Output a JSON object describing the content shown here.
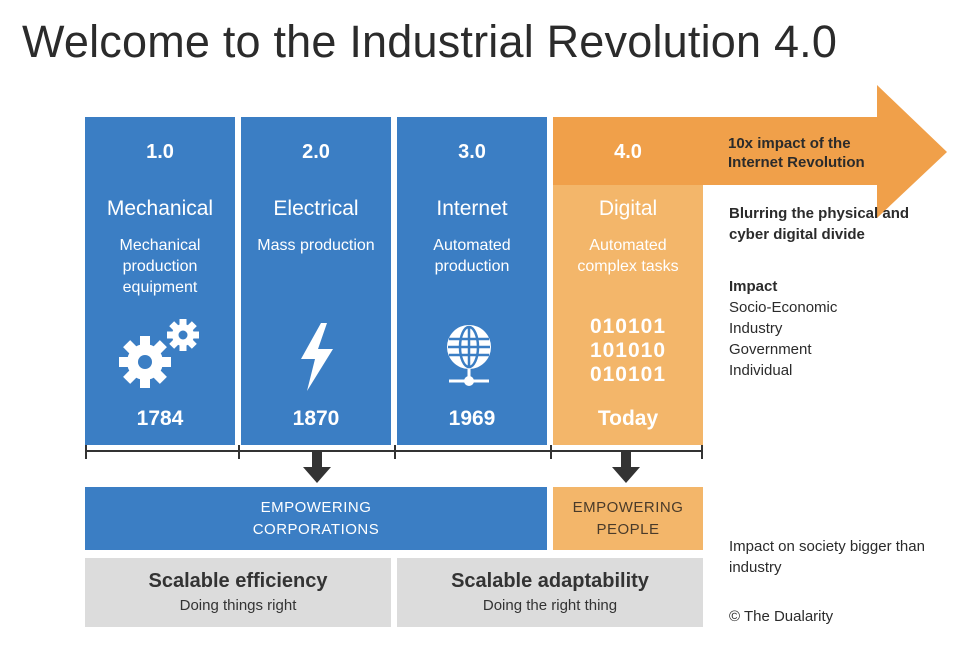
{
  "title": "Welcome to the Industrial Revolution 4.0",
  "colors": {
    "blue": "#3b7ec4",
    "orange": "#f3b66a",
    "arrow": "#f0a04a",
    "grey": "#dcdcdc"
  },
  "stages": [
    {
      "num": "1.0",
      "name": "Mechanical",
      "desc": "Mechanical production equipment",
      "icon": "gears-icon",
      "year": "1784"
    },
    {
      "num": "2.0",
      "name": "Electrical",
      "desc": "Mass production",
      "icon": "lightning-icon",
      "year": "1870"
    },
    {
      "num": "3.0",
      "name": "Internet",
      "desc": "Automated production",
      "icon": "globe-network-icon",
      "year": "1969"
    },
    {
      "num": "4.0",
      "name": "Digital",
      "desc": "Automated complex tasks",
      "binary": [
        "010101",
        "101010",
        "010101"
      ],
      "year": "Today"
    }
  ],
  "arrow_text": "10x impact of the Internet Revolution",
  "side": {
    "blurring": "Blurring the physical and cyber digital divide",
    "impact_heading": "Impact",
    "impact_items": [
      "Socio-Economic",
      "Industry",
      "Government",
      "Individual"
    ],
    "society": "Impact on society bigger than industry",
    "copyright": "© The Dualarity"
  },
  "bands": {
    "corporations": "EMPOWERING CORPORATIONS",
    "people": "EMPOWERING PEOPLE"
  },
  "summary": [
    {
      "heading": "Scalable efficiency",
      "sub": "Doing things right"
    },
    {
      "heading": "Scalable adaptability",
      "sub": "Doing the right thing"
    }
  ]
}
